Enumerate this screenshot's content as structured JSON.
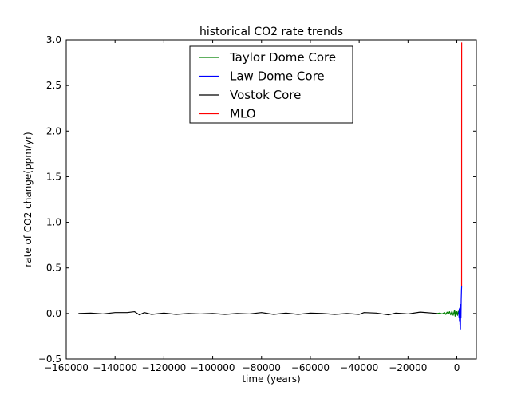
{
  "chart_data": {
    "type": "line",
    "title": "historical CO2 rate trends",
    "xlabel": "time (years)",
    "ylabel": "rate of CO2 change(ppm/yr)",
    "xlim": [
      -160000,
      8000
    ],
    "ylim": [
      -0.5,
      3.0
    ],
    "x_ticks": [
      -160000,
      -140000,
      -120000,
      -100000,
      -80000,
      -60000,
      -40000,
      -20000,
      0
    ],
    "x_tick_labels": [
      "−160000",
      "−140000",
      "−120000",
      "−100000",
      "−80000",
      "−60000",
      "−40000",
      "−20000",
      "0"
    ],
    "y_ticks": [
      -0.5,
      0.0,
      0.5,
      1.0,
      1.5,
      2.0,
      2.5,
      3.0
    ],
    "y_tick_labels": [
      "−0.5",
      "0.0",
      "0.5",
      "1.0",
      "1.5",
      "2.0",
      "2.5",
      "3.0"
    ],
    "grid": false,
    "legend_position": "top-center",
    "series": [
      {
        "name": "Taylor Dome Core",
        "color": "#008000",
        "points": [
          [
            -8000,
            0.0
          ],
          [
            -7000,
            0.005
          ],
          [
            -6000,
            -0.005
          ],
          [
            -5000,
            0.01
          ],
          [
            -4500,
            -0.01
          ],
          [
            -4000,
            0.015
          ],
          [
            -3500,
            -0.005
          ],
          [
            -3000,
            0.02
          ],
          [
            -2500,
            -0.015
          ],
          [
            -2000,
            0.025
          ],
          [
            -1500,
            -0.02
          ],
          [
            -1000,
            0.03
          ],
          [
            -700,
            -0.03
          ],
          [
            -400,
            0.035
          ],
          [
            -200,
            -0.01
          ],
          [
            0,
            0.02
          ],
          [
            300,
            -0.02
          ],
          [
            600,
            0.025
          ],
          [
            900,
            0.01
          ]
        ]
      },
      {
        "name": "Law Dome Core",
        "color": "#0000ff",
        "points": [
          [
            800,
            0.02
          ],
          [
            900,
            -0.04
          ],
          [
            1000,
            0.05
          ],
          [
            1100,
            -0.08
          ],
          [
            1200,
            0.06
          ],
          [
            1300,
            -0.12
          ],
          [
            1400,
            0.08
          ],
          [
            1500,
            -0.17
          ],
          [
            1600,
            0.1
          ],
          [
            1700,
            -0.05
          ],
          [
            1800,
            0.15
          ],
          [
            1900,
            0.25
          ],
          [
            1980,
            0.3
          ]
        ]
      },
      {
        "name": "Vostok Core",
        "color": "#000000",
        "points": [
          [
            -155000,
            0.0
          ],
          [
            -150000,
            0.005
          ],
          [
            -145000,
            -0.005
          ],
          [
            -140000,
            0.01
          ],
          [
            -135000,
            0.01
          ],
          [
            -132000,
            0.02
          ],
          [
            -130000,
            -0.015
          ],
          [
            -128000,
            0.01
          ],
          [
            -125000,
            -0.01
          ],
          [
            -120000,
            0.005
          ],
          [
            -115000,
            -0.01
          ],
          [
            -110000,
            0.0
          ],
          [
            -105000,
            -0.005
          ],
          [
            -100000,
            0.0
          ],
          [
            -95000,
            -0.01
          ],
          [
            -90000,
            0.0
          ],
          [
            -85000,
            -0.005
          ],
          [
            -80000,
            0.01
          ],
          [
            -75000,
            -0.01
          ],
          [
            -70000,
            0.005
          ],
          [
            -65000,
            -0.01
          ],
          [
            -60000,
            0.005
          ],
          [
            -55000,
            0.0
          ],
          [
            -50000,
            -0.01
          ],
          [
            -45000,
            0.0
          ],
          [
            -40000,
            -0.01
          ],
          [
            -38000,
            0.01
          ],
          [
            -33000,
            0.005
          ],
          [
            -28000,
            -0.015
          ],
          [
            -25000,
            0.005
          ],
          [
            -20000,
            -0.005
          ],
          [
            -15000,
            0.015
          ],
          [
            -10000,
            0.005
          ],
          [
            -8000,
            0.0
          ]
        ]
      },
      {
        "name": "MLO",
        "color": "#ff0000",
        "points": [
          [
            1959,
            0.3
          ],
          [
            1965,
            1.0
          ],
          [
            1970,
            1.8
          ],
          [
            1975,
            2.3
          ],
          [
            1980,
            2.6
          ],
          [
            1985,
            2.8
          ],
          [
            1990,
            2.97
          ]
        ]
      }
    ]
  }
}
